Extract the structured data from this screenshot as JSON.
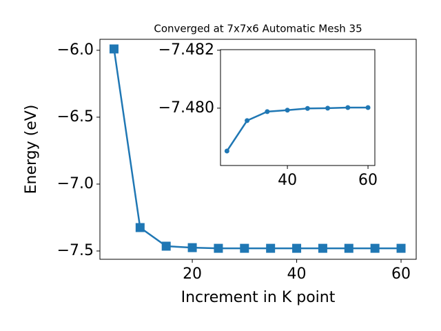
{
  "chart_data": [
    {
      "type": "line",
      "title": "Converged at 7x7x6 Automatic Mesh 35",
      "x_label": "Increment in K point",
      "y_label": "Energy (eV)",
      "x": [
        5,
        10,
        15,
        20,
        25,
        30,
        35,
        40,
        45,
        50,
        55,
        60
      ],
      "series": [
        {
          "name": "Energy",
          "color": "#1f77b4",
          "marker": "square",
          "values": [
            -5.99,
            -7.325,
            -7.464,
            -7.475,
            -7.48,
            -7.48,
            -7.48,
            -7.48,
            -7.48,
            -7.48,
            -7.48,
            -7.48
          ]
        }
      ],
      "xlim": [
        2.3,
        62.9
      ],
      "ylim": [
        -7.562,
        -5.918
      ],
      "xticks": [
        20,
        40,
        60
      ],
      "yticks": [
        {
          "value": -7.5,
          "label": "−7.5"
        },
        {
          "value": -7.0,
          "label": "−7.0"
        },
        {
          "value": -6.5,
          "label": "−6.5"
        },
        {
          "value": -6.0,
          "label": "−6.0"
        }
      ]
    },
    {
      "type": "line",
      "x": [
        25,
        30,
        35,
        40,
        45,
        50,
        55,
        60
      ],
      "series": [
        {
          "name": "Energy",
          "color": "#1f77b4",
          "marker": "circle",
          "values": [
            -7.47852,
            -7.47957,
            -7.47988,
            -7.47993,
            -7.47999,
            -7.48,
            -7.48002,
            -7.48002
          ]
        }
      ],
      "xlim": [
        23.4,
        61.7
      ],
      "ylim": [
        -7.47802,
        -7.48202
      ],
      "xticks": [
        40,
        60
      ],
      "yticks": [
        {
          "value": -7.48,
          "label": "−7.480"
        },
        {
          "value": -7.482,
          "label": "−7.482"
        }
      ]
    }
  ]
}
